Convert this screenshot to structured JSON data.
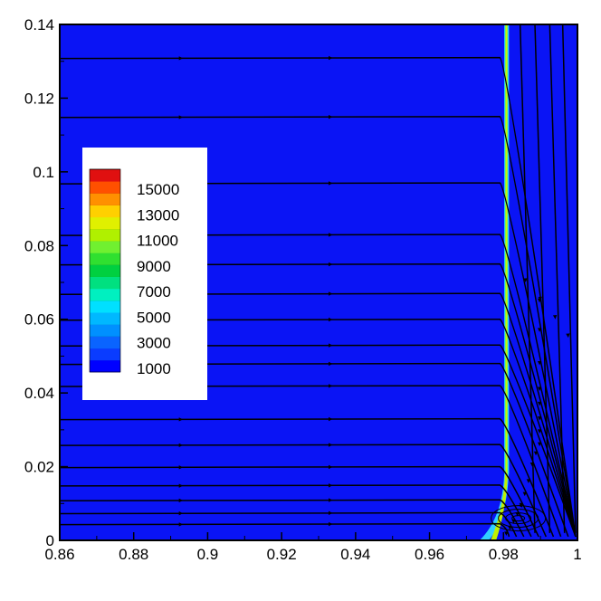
{
  "chart_data": {
    "type": "heatmap",
    "title": "",
    "xlabel": "",
    "ylabel": "",
    "xlim": [
      0.86,
      1.0
    ],
    "ylim": [
      0,
      0.14
    ],
    "x_ticks": [
      0.86,
      0.88,
      0.9,
      0.92,
      0.94,
      0.96,
      0.98,
      1.0
    ],
    "x_tick_labels": [
      "0.86",
      "0.88",
      "0.9",
      "0.92",
      "0.94",
      "0.96",
      "0.98",
      "1"
    ],
    "y_ticks": [
      0,
      0.02,
      0.04,
      0.06,
      0.08,
      0.1,
      0.12,
      0.14
    ],
    "y_tick_labels": [
      "0",
      "0.02",
      "0.04",
      "0.06",
      "0.08",
      "0.1",
      "0.12",
      "0.14"
    ],
    "grid": false,
    "legend": {
      "placement": "upper-left",
      "labels": [
        "15000",
        "13000",
        "11000",
        "9000",
        "7000",
        "5000",
        "3000",
        "1000"
      ],
      "levels": [
        1000,
        2000,
        3000,
        4000,
        5000,
        6000,
        7000,
        8000,
        9000,
        10000,
        11000,
        12000,
        13000,
        14000,
        15000,
        16000
      ],
      "colors": [
        "#0000ff",
        "#0a3cff",
        "#0a64ff",
        "#0090ff",
        "#00b8ff",
        "#00e0ff",
        "#00f0c0",
        "#00e080",
        "#00d040",
        "#30e030",
        "#70f030",
        "#b0f000",
        "#e0f000",
        "#ffd000",
        "#ff9000",
        "#ff5000",
        "#e01010"
      ]
    },
    "background_color": "#0a14f5",
    "front": {
      "description_value": "high-gradient band",
      "x_center": 0.9808,
      "x_halfwidth": 0.0006,
      "y_bottom": 0.018,
      "colors": [
        "#30d0ff",
        "#80ff40",
        "#e0f000",
        "#80ff40",
        "#30d0ff"
      ]
    },
    "streamlines_upstream": {
      "y_start": [
        0.0045,
        0.0075,
        0.011,
        0.015,
        0.02,
        0.026,
        0.033,
        0.042,
        0.048,
        0.053,
        0.06,
        0.067,
        0.075,
        0.083,
        0.097,
        0.115,
        0.131
      ],
      "x_start": 0.86,
      "x_turn": 0.98
    },
    "streamlines_downstream": {
      "x_end": [
        0.9815,
        0.9835,
        0.9855,
        0.9875,
        0.9895,
        0.9915,
        0.9935,
        0.9955,
        0.9975,
        0.9995
      ],
      "y_end": 0.001
    },
    "vortex": {
      "x": 0.984,
      "y": 0.006
    }
  }
}
